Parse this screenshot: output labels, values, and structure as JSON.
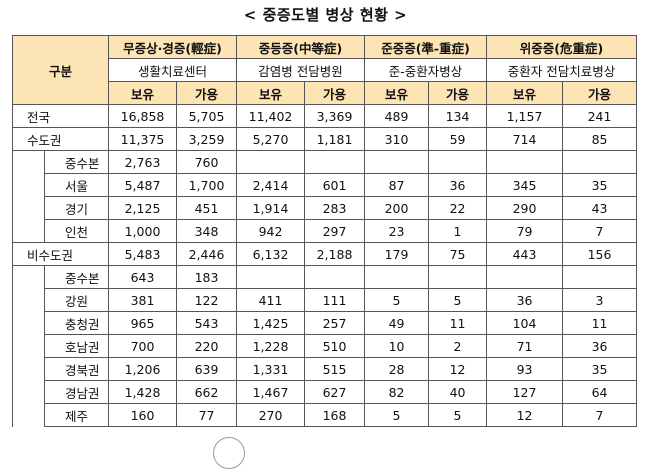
{
  "title": "< 중증도별 병상 현황 >",
  "header": {
    "group_label": "구분",
    "severity": [
      {
        "name": "무증상·경증(輕症)",
        "facility": "생활치료센터"
      },
      {
        "name": "중등증(中等症)",
        "facility": "감염병 전담병원"
      },
      {
        "name": "준중증(準-重症)",
        "facility": "준-중환자병상"
      },
      {
        "name": "위중증(危重症)",
        "facility": "중환자 전담치료병상"
      }
    ],
    "have_label": "보유",
    "avail_label": "가용"
  },
  "rows": [
    {
      "region": "전국",
      "level": 0,
      "values": [
        "16,858",
        "5,705",
        "11,402",
        "3,369",
        "489",
        "134",
        "1,157",
        "241"
      ]
    },
    {
      "region": "수도권",
      "level": 0,
      "values": [
        "11,375",
        "3,259",
        "5,270",
        "1,181",
        "310",
        "59",
        "714",
        "85"
      ]
    },
    {
      "region": "중수본",
      "level": 1,
      "values": [
        "2,763",
        "760",
        "",
        "",
        "",
        "",
        "",
        ""
      ]
    },
    {
      "region": "서울",
      "level": 1,
      "values": [
        "5,487",
        "1,700",
        "2,414",
        "601",
        "87",
        "36",
        "345",
        "35"
      ]
    },
    {
      "region": "경기",
      "level": 1,
      "values": [
        "2,125",
        "451",
        "1,914",
        "283",
        "200",
        "22",
        "290",
        "43"
      ]
    },
    {
      "region": "인천",
      "level": 1,
      "values": [
        "1,000",
        "348",
        "942",
        "297",
        "23",
        "1",
        "79",
        "7"
      ]
    },
    {
      "region": "비수도권",
      "level": 0,
      "values": [
        "5,483",
        "2,446",
        "6,132",
        "2,188",
        "179",
        "75",
        "443",
        "156"
      ]
    },
    {
      "region": "중수본",
      "level": 1,
      "values": [
        "643",
        "183",
        "",
        "",
        "",
        "",
        "",
        ""
      ]
    },
    {
      "region": "강원",
      "level": 1,
      "values": [
        "381",
        "122",
        "411",
        "111",
        "5",
        "5",
        "36",
        "3"
      ]
    },
    {
      "region": "충청권",
      "level": 1,
      "values": [
        "965",
        "543",
        "1,425",
        "257",
        "49",
        "11",
        "104",
        "11"
      ]
    },
    {
      "region": "호남권",
      "level": 1,
      "values": [
        "700",
        "220",
        "1,228",
        "510",
        "10",
        "2",
        "71",
        "36"
      ]
    },
    {
      "region": "경북권",
      "level": 1,
      "values": [
        "1,206",
        "639",
        "1,331",
        "515",
        "28",
        "12",
        "93",
        "35"
      ]
    },
    {
      "region": "경남권",
      "level": 1,
      "values": [
        "1,428",
        "662",
        "1,467",
        "627",
        "82",
        "40",
        "127",
        "64"
      ]
    },
    {
      "region": "제주",
      "level": 1,
      "values": [
        "160",
        "77",
        "270",
        "168",
        "5",
        "5",
        "12",
        "7"
      ]
    }
  ]
}
